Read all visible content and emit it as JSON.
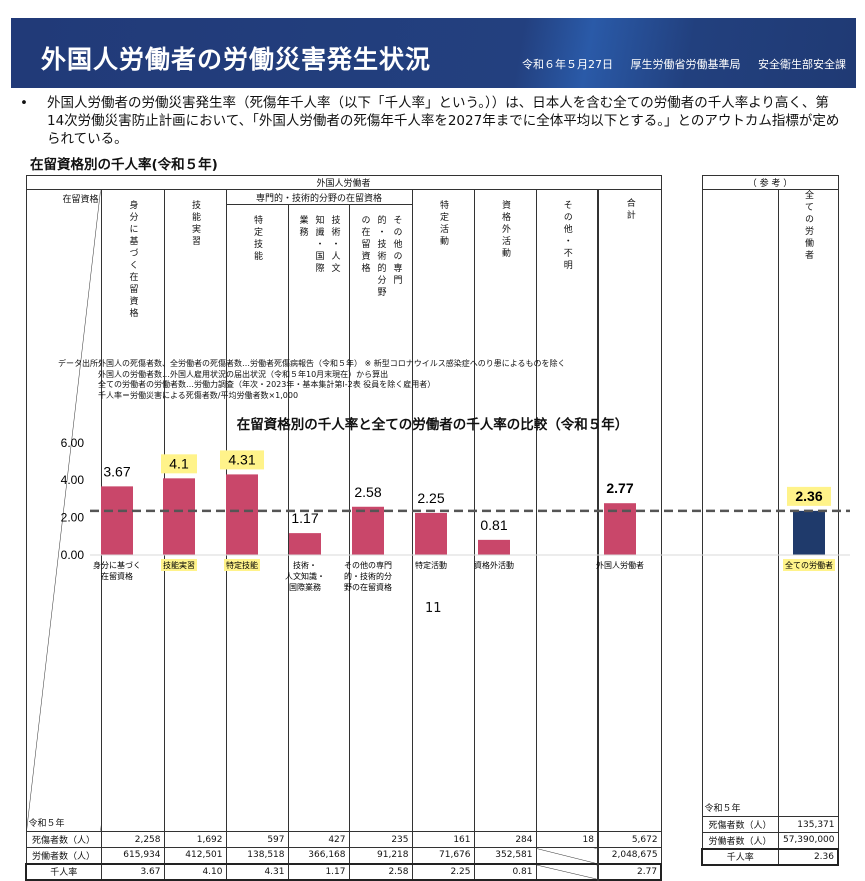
{
  "header": {
    "title": "外国人労働者の労働災害発生状況",
    "subtitle": "令和６年５月27日 厚生労働省労働基準局 安全衛生部安全課"
  },
  "bullet": {
    "mark": "•",
    "text": "外国人労働者の労働災害発生率（死傷年千人率（以下「千人率」という。））は、日本人を含む全ての労働者の千人率より高く、第14次労働災害防止計画において、「外国人労働者の死傷年千人率を2027年までに全体平均以下とする。」とのアウトカム指標が定められている。"
  },
  "table": {
    "title": "在留資格別の千人率(令和５年)",
    "group": "外国人労働者",
    "corner_top": "在留資格",
    "corner_bottom": "令和５年",
    "subgroup": "専門的・技術的分野の在留資格",
    "columns": [
      "身分に基づく在留資格",
      "技能実習",
      "特定技能",
      "技術・人文知識・国際業務",
      "その他の専門的・技術的分野の在留資格",
      "特定活動",
      "資格外活動",
      "その他・不明",
      "合計"
    ],
    "rows": [
      {
        "label": "死傷者数（人）",
        "values": [
          "2,258",
          "1,692",
          "597",
          "427",
          "235",
          "161",
          "284",
          "18",
          "5,672"
        ]
      },
      {
        "label": "労働者数（人）",
        "values": [
          "615,934",
          "412,501",
          "138,518",
          "366,168",
          "91,218",
          "71,676",
          "352,581",
          "",
          "2,048,675"
        ]
      },
      {
        "label": "千人率",
        "values": [
          "3.67",
          "4.10",
          "4.31",
          "1.17",
          "2.58",
          "2.25",
          "0.81",
          "",
          "2.77"
        ]
      }
    ],
    "ref": {
      "title": "（ 参 考 ）",
      "corner_bottom": "令和５年",
      "column": "全ての労働者",
      "rows": [
        {
          "label": "死傷者数（人）",
          "value": "135,371"
        },
        {
          "label": "労働者数（人）",
          "value": "57,390,000"
        },
        {
          "label": "千人率",
          "value": "2.36"
        }
      ]
    }
  },
  "source": {
    "label": "データ出所：",
    "lines": [
      "外国人の死傷者数、全労働者の死傷者数…労働者死傷病報告（令和５年） ※ 新型コロナウイルス感染症へのり患によるものを除く",
      "外国人の労働者数…外国人雇用状況の届出状況（令和５年10月末現在）から算出",
      "全ての労働者の労働者数…労働力調査（年次・2023年・基本集計第I-2表 役員を除く雇用者）",
      "千人率＝労働災害による死傷者数/平均労働者数×1,000"
    ]
  },
  "chart_data": {
    "type": "bar",
    "title": "在留資格別の千人率と全ての労働者の千人率の比較（令和５年）",
    "categories": [
      "身分に基づく\n在留資格",
      "技能実習",
      "特定技能",
      "技術・\n人文知識・\n国際業務",
      "その他の専門\n的・技術的分\n野の在留資格",
      "特定活動",
      "資格外活動",
      "外国人労働者",
      "全ての労働者"
    ],
    "values": [
      3.67,
      4.1,
      4.31,
      1.17,
      2.58,
      2.25,
      0.81,
      2.77,
      2.36
    ],
    "data_labels": [
      "3.67",
      "4.1",
      "4.31",
      "1.17",
      "2.58",
      "2.25",
      "0.81",
      "2.77",
      "2.36"
    ],
    "highlighted": [
      1,
      2,
      8
    ],
    "bold_labels": [
      7,
      8
    ],
    "yticks": [
      "0.00",
      "2.00",
      "4.00",
      "6.00"
    ],
    "ylim": [
      0,
      6
    ],
    "reference_line": 2.36,
    "colors": {
      "bar": "#c9476a",
      "all_workers_bar": "#1f3a6b",
      "highlight": "#fff38a",
      "reference_line": "#555555"
    }
  },
  "page_number": "11"
}
